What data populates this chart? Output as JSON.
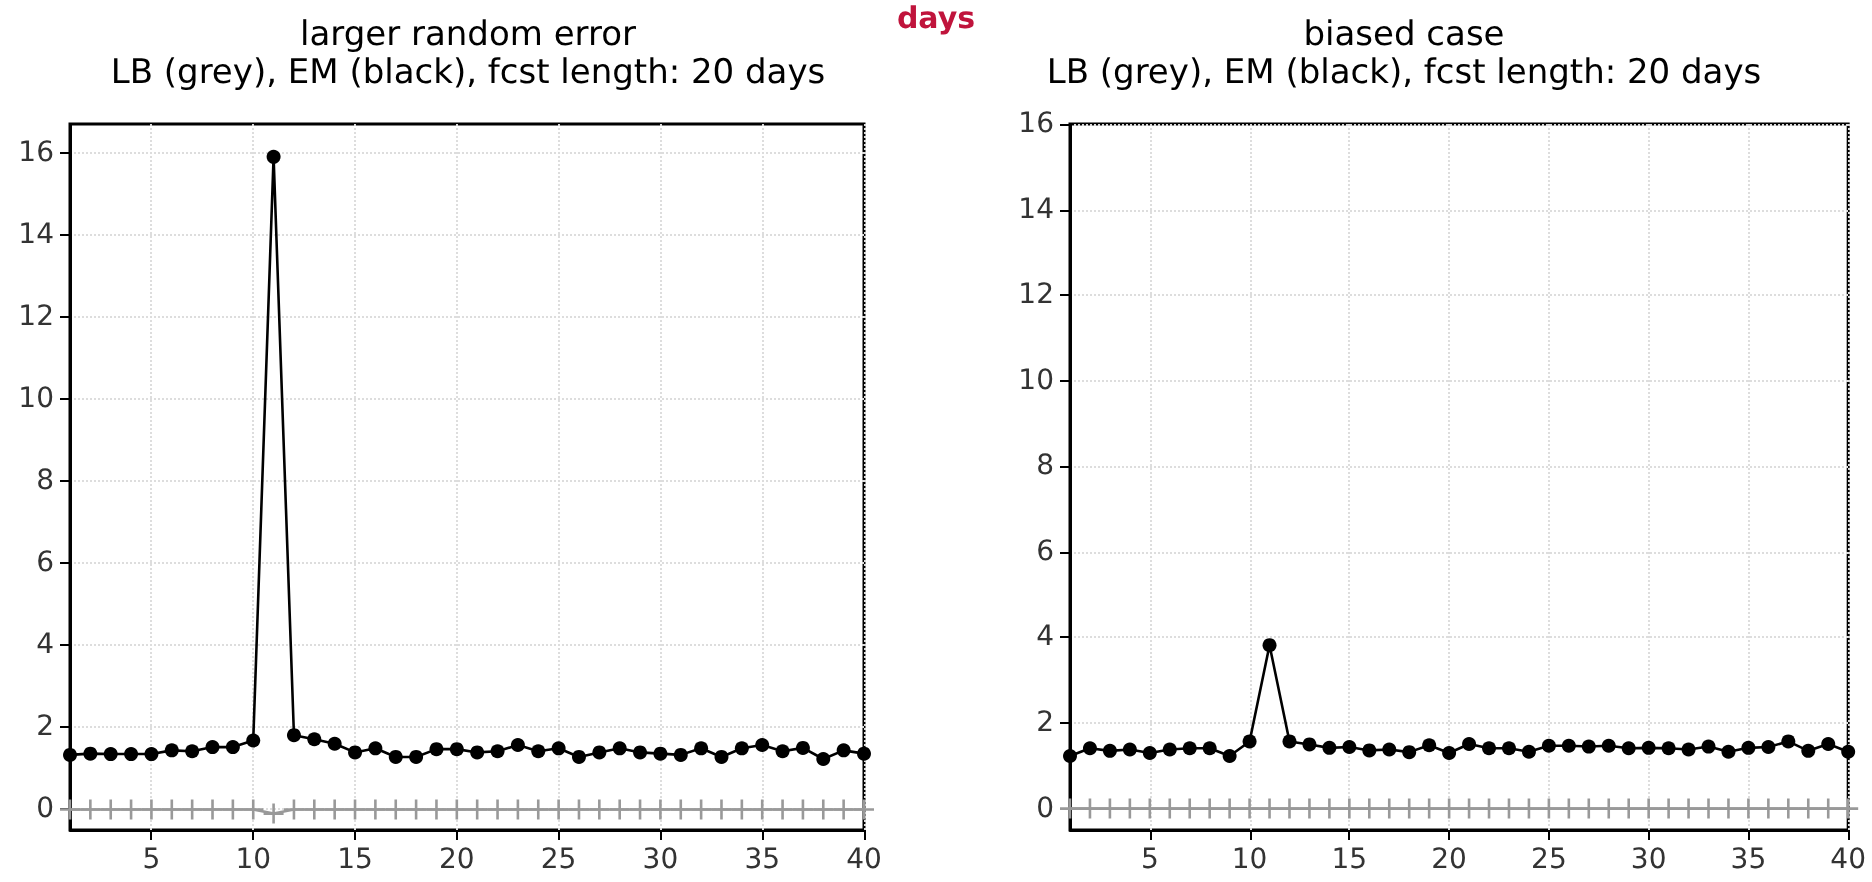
{
  "chart_data": [
    {
      "type": "line",
      "title": "larger random error",
      "subtitle": "LB (grey), EM (black), fcst length: 20 days",
      "annotations": [
        "days"
      ],
      "x": [
        1,
        2,
        3,
        4,
        5,
        6,
        7,
        8,
        9,
        10,
        11,
        12,
        13,
        14,
        15,
        16,
        17,
        18,
        19,
        20,
        21,
        22,
        23,
        24,
        25,
        26,
        27,
        28,
        29,
        30,
        31,
        32,
        33,
        34,
        35,
        36,
        37,
        38,
        39,
        40
      ],
      "series": [
        {
          "color": "#999999",
          "marker": "cross",
          "values": [
            0,
            0,
            0,
            0,
            0,
            0,
            0,
            0,
            0,
            0,
            -0.1,
            0,
            0,
            0,
            0,
            0,
            0,
            0,
            0,
            0,
            0,
            0,
            0,
            0,
            0,
            0,
            0,
            0,
            0,
            0,
            0,
            0,
            0,
            0,
            0,
            0,
            0,
            0,
            0,
            0
          ]
        },
        {
          "color": "#000000",
          "marker": "circle",
          "values": [
            1.33,
            1.36,
            1.35,
            1.35,
            1.35,
            1.44,
            1.42,
            1.52,
            1.52,
            1.68,
            15.9,
            1.81,
            1.71,
            1.6,
            1.39,
            1.49,
            1.28,
            1.28,
            1.47,
            1.47,
            1.39,
            1.42,
            1.57,
            1.42,
            1.49,
            1.28,
            1.39,
            1.49,
            1.39,
            1.36,
            1.33,
            1.49,
            1.28,
            1.49,
            1.57,
            1.42,
            1.5,
            1.23,
            1.44,
            1.36
          ]
        }
      ],
      "xlim": [
        1,
        40
      ],
      "xticks": [
        5,
        10,
        15,
        20,
        25,
        30,
        35,
        40
      ],
      "ylim": [
        -0.5,
        16.7
      ],
      "yticks": [
        0,
        2,
        4,
        6,
        8,
        10,
        12,
        14,
        16
      ],
      "grid": true
    },
    {
      "type": "line",
      "title": "biased case",
      "subtitle": "LB (grey), EM (black), fcst length: 20 days",
      "x": [
        1,
        2,
        3,
        4,
        5,
        6,
        7,
        8,
        9,
        10,
        11,
        12,
        13,
        14,
        15,
        16,
        17,
        18,
        19,
        20,
        21,
        22,
        23,
        24,
        25,
        26,
        27,
        28,
        29,
        30,
        31,
        32,
        33,
        34,
        35,
        36,
        37,
        38,
        39,
        40
      ],
      "series": [
        {
          "color": "#999999",
          "marker": "cross",
          "values": [
            0,
            0,
            0,
            0,
            0,
            0,
            0,
            0,
            0,
            0,
            0,
            0,
            0,
            0,
            0,
            0,
            0,
            0,
            0,
            0,
            0,
            0,
            0,
            0,
            0,
            0,
            0,
            0,
            0,
            0,
            0,
            0,
            0,
            0,
            0,
            0,
            0,
            0,
            0,
            0
          ]
        },
        {
          "color": "#000000",
          "marker": "circle",
          "values": [
            1.23,
            1.41,
            1.35,
            1.38,
            1.3,
            1.38,
            1.41,
            1.41,
            1.23,
            1.57,
            3.82,
            1.57,
            1.5,
            1.42,
            1.44,
            1.36,
            1.38,
            1.32,
            1.48,
            1.3,
            1.51,
            1.41,
            1.41,
            1.33,
            1.47,
            1.47,
            1.45,
            1.47,
            1.41,
            1.42,
            1.41,
            1.38,
            1.45,
            1.33,
            1.42,
            1.44,
            1.57,
            1.35,
            1.51,
            1.33
          ]
        }
      ],
      "xlim": [
        1,
        40
      ],
      "xticks": [
        5,
        10,
        15,
        20,
        25,
        30,
        35,
        40
      ],
      "ylim": [
        -0.5,
        16
      ],
      "yticks": [
        0,
        2,
        4,
        6,
        8,
        10,
        12,
        14,
        16
      ],
      "grid": true
    }
  ]
}
